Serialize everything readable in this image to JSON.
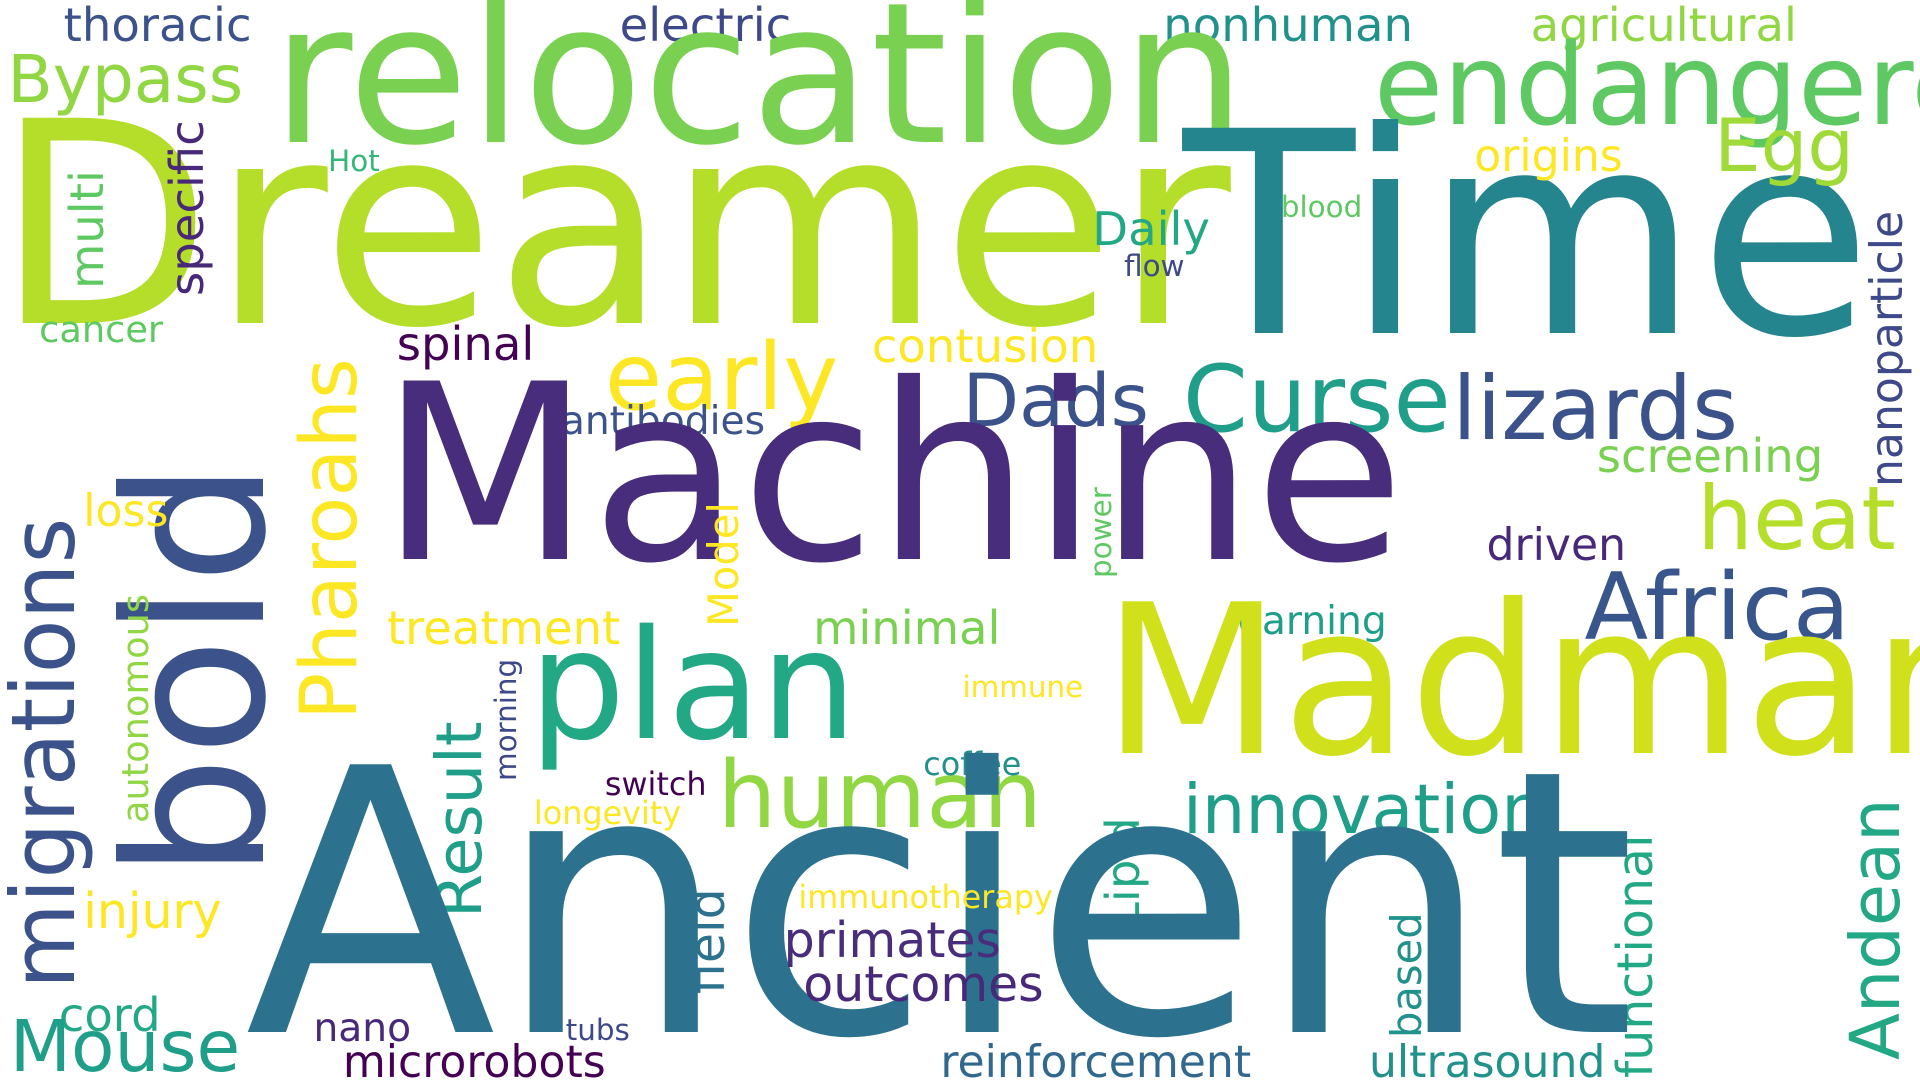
{
  "words": [
    {
      "text": "thoracic",
      "color": "#3b528b"
    },
    {
      "text": "electric",
      "color": "#3e4989"
    },
    {
      "text": "nonhuman",
      "color": "#21918c"
    },
    {
      "text": "agricultural",
      "color": "#90d743"
    },
    {
      "text": "relocation",
      "color": "#7ad151"
    },
    {
      "text": "Bypass",
      "color": "#90d743"
    },
    {
      "text": "endangered",
      "color": "#5ec962"
    },
    {
      "text": "Dreamer",
      "color": "#b5de2b"
    },
    {
      "text": "Time",
      "color": "#25858e"
    },
    {
      "text": "Hot",
      "color": "#35b779"
    },
    {
      "text": "specific",
      "color": "#482878"
    },
    {
      "text": "multi",
      "color": "#5ec962"
    },
    {
      "text": "origins",
      "color": "#fde725"
    },
    {
      "text": "Egg",
      "color": "#a0da39"
    },
    {
      "text": "blood",
      "color": "#5ec962"
    },
    {
      "text": "Daily",
      "color": "#22a884"
    },
    {
      "text": "flow",
      "color": "#3e4989"
    },
    {
      "text": "nanoparticle",
      "color": "#3e4989"
    },
    {
      "text": "cancer",
      "color": "#5ec962"
    },
    {
      "text": "spinal",
      "color": "#440154"
    },
    {
      "text": "contusion",
      "color": "#fde725"
    },
    {
      "text": "bold",
      "color": "#3b528b"
    },
    {
      "text": "Pharoahs",
      "color": "#fde725"
    },
    {
      "text": "early",
      "color": "#fde725"
    },
    {
      "text": "Dads",
      "color": "#3b528b"
    },
    {
      "text": "Curse",
      "color": "#1f9e89"
    },
    {
      "text": "lizards",
      "color": "#3b528b"
    },
    {
      "text": "antibodies",
      "color": "#3b528b"
    },
    {
      "text": "Machine",
      "color": "#472d7b"
    },
    {
      "text": "screening",
      "color": "#7ad151"
    },
    {
      "text": "migrations",
      "color": "#3b528b"
    },
    {
      "text": "loss",
      "color": "#fde725"
    },
    {
      "text": "power",
      "color": "#5ec962"
    },
    {
      "text": "heat",
      "color": "#b5de2b"
    },
    {
      "text": "Model",
      "color": "#fde725"
    },
    {
      "text": "driven",
      "color": "#482878"
    },
    {
      "text": "Africa",
      "color": "#39568c"
    },
    {
      "text": "autonomous",
      "color": "#90d743"
    },
    {
      "text": "treatment",
      "color": "#fde725"
    },
    {
      "text": "minimal",
      "color": "#7ad151"
    },
    {
      "text": "learning",
      "color": "#1f9e89"
    },
    {
      "text": "Madman",
      "color": "#d0e11c"
    },
    {
      "text": "plan",
      "color": "#22a884"
    },
    {
      "text": "Result",
      "color": "#1f9e89"
    },
    {
      "text": "morning",
      "color": "#3e4989"
    },
    {
      "text": "immune",
      "color": "#fde725"
    },
    {
      "text": "human",
      "color": "#90d743"
    },
    {
      "text": "switch",
      "color": "#440154"
    },
    {
      "text": "coffee",
      "color": "#21918c"
    },
    {
      "text": "longevity",
      "color": "#fde725"
    },
    {
      "text": "innovation",
      "color": "#1f9e89"
    },
    {
      "text": "Andean",
      "color": "#22a884"
    },
    {
      "text": "Lipid",
      "color": "#22a884"
    },
    {
      "text": "functional",
      "color": "#22a884"
    },
    {
      "text": "Ancient",
      "color": "#2c728e"
    },
    {
      "text": "injury",
      "color": "#fde725"
    },
    {
      "text": "field",
      "color": "#2c728e"
    },
    {
      "text": "immunotherapy",
      "color": "#fde725"
    },
    {
      "text": "primates",
      "color": "#472d7b"
    },
    {
      "text": "outcomes",
      "color": "#482878"
    },
    {
      "text": "based",
      "color": "#21918c"
    },
    {
      "text": "cord",
      "color": "#22a884"
    },
    {
      "text": "Mouse",
      "color": "#1f9e89"
    },
    {
      "text": "nano",
      "color": "#482878"
    },
    {
      "text": "tubs",
      "color": "#3e4989"
    },
    {
      "text": "microrobots",
      "color": "#440154"
    },
    {
      "text": "reinforcement",
      "color": "#31688e"
    },
    {
      "text": "ultrasound",
      "color": "#21918c"
    }
  ]
}
